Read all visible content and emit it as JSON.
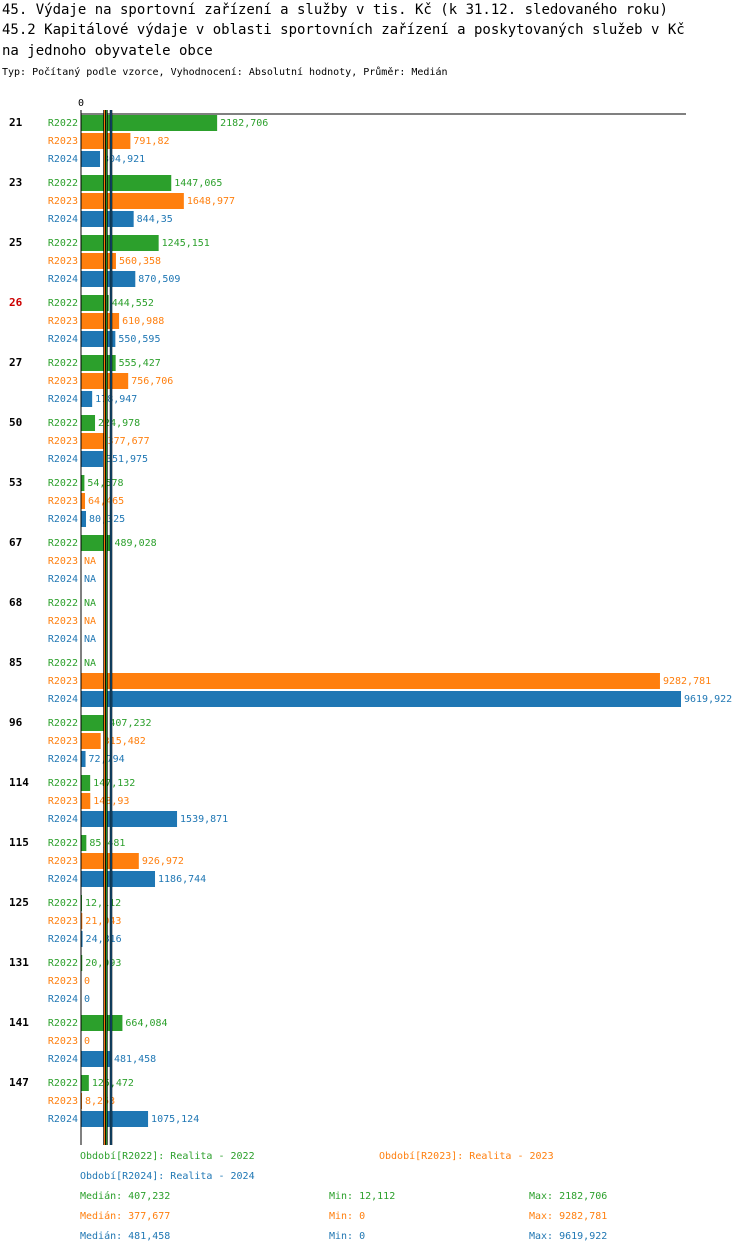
{
  "header": {
    "title1": "45. Výdaje na sportovní zařízení a služby v tis. Kč (k 31.12. sledovaného roku)",
    "title2": "45.2 Kapitálové výdaje v oblasti sportovních zařízení a poskytovaných služeb v Kč",
    "title3": " na jednoho obyvatele obce",
    "subtitle": "Typ: Počítaný podle vzorce, Vyhodnocení: Absolutní hodnoty, Průměr: Medián"
  },
  "colors": {
    "R2022": "#2ca02c",
    "R2023": "#ff7f0e",
    "R2024": "#1f77b4",
    "highlight": "#cc0000"
  },
  "chart_data": {
    "type": "bar",
    "orientation": "horizontal",
    "axis_zero_label": "0",
    "xlim": [
      0,
      9619.922
    ],
    "highlight_category": "26",
    "categories": [
      "21",
      "23",
      "25",
      "26",
      "27",
      "50",
      "53",
      "67",
      "68",
      "85",
      "96",
      "114",
      "115",
      "125",
      "131",
      "141",
      "147"
    ],
    "series": [
      {
        "name": "R2022",
        "values": [
          2182.706,
          1447.065,
          1245.151,
          444.552,
          555.427,
          224.978,
          54.578,
          489.028,
          null,
          null,
          407.232,
          147.132,
          85.481,
          12.112,
          20.093,
          664.084,
          125.472
        ],
        "labels": [
          "2182,706",
          "1447,065",
          "1245,151",
          "444,552",
          "555,427",
          "224,978",
          "54,578",
          "489,028",
          "NA",
          "NA",
          "407,232",
          "147,132",
          "85,481",
          "12,112",
          "20,093",
          "664,084",
          "125,472"
        ]
      },
      {
        "name": "R2023",
        "values": [
          791.82,
          1648.977,
          560.358,
          610.988,
          756.706,
          377.677,
          64.465,
          null,
          null,
          9282.781,
          315.482,
          148.93,
          926.972,
          21.043,
          0,
          0,
          8.263
        ],
        "labels": [
          "791,82",
          "1648,977",
          "560,358",
          "610,988",
          "756,706",
          "377,677",
          "64,465",
          "NA",
          "NA",
          "9282,781",
          "315,482",
          "148,93",
          "926,972",
          "21,043",
          "0",
          "0",
          "8,263"
        ]
      },
      {
        "name": "R2024",
        "values": [
          304.921,
          844.35,
          870.509,
          550.595,
          178.947,
          351.975,
          80.325,
          null,
          null,
          9619.922,
          72.794,
          1539.871,
          1186.744,
          24.816,
          0,
          481.458,
          1075.124
        ],
        "labels": [
          "304,921",
          "844,35",
          "870,509",
          "550,595",
          "178,947",
          "351,975",
          "80,325",
          "NA",
          "NA",
          "9619,922",
          "72,794",
          "1539,871",
          "1186,744",
          "24,816",
          "0",
          "481,458",
          "1075,124"
        ]
      }
    ],
    "median_lines": [
      407.232,
      377.677,
      481.458
    ]
  },
  "legend": {
    "period_2022": "Období[R2022]: Realita - 2022",
    "period_2023": "Období[R2023]: Realita - 2023",
    "period_2024": "Období[R2024]: Realita - 2024",
    "stats": [
      {
        "median": "Medián: 407,232",
        "min": "Min: 12,112",
        "max": "Max: 2182,706"
      },
      {
        "median": "Medián: 377,677",
        "min": "Min: 0",
        "max": "Max: 9282,781"
      },
      {
        "median": "Medián: 481,458",
        "min": "Min: 0",
        "max": "Max: 9619,922"
      }
    ]
  }
}
